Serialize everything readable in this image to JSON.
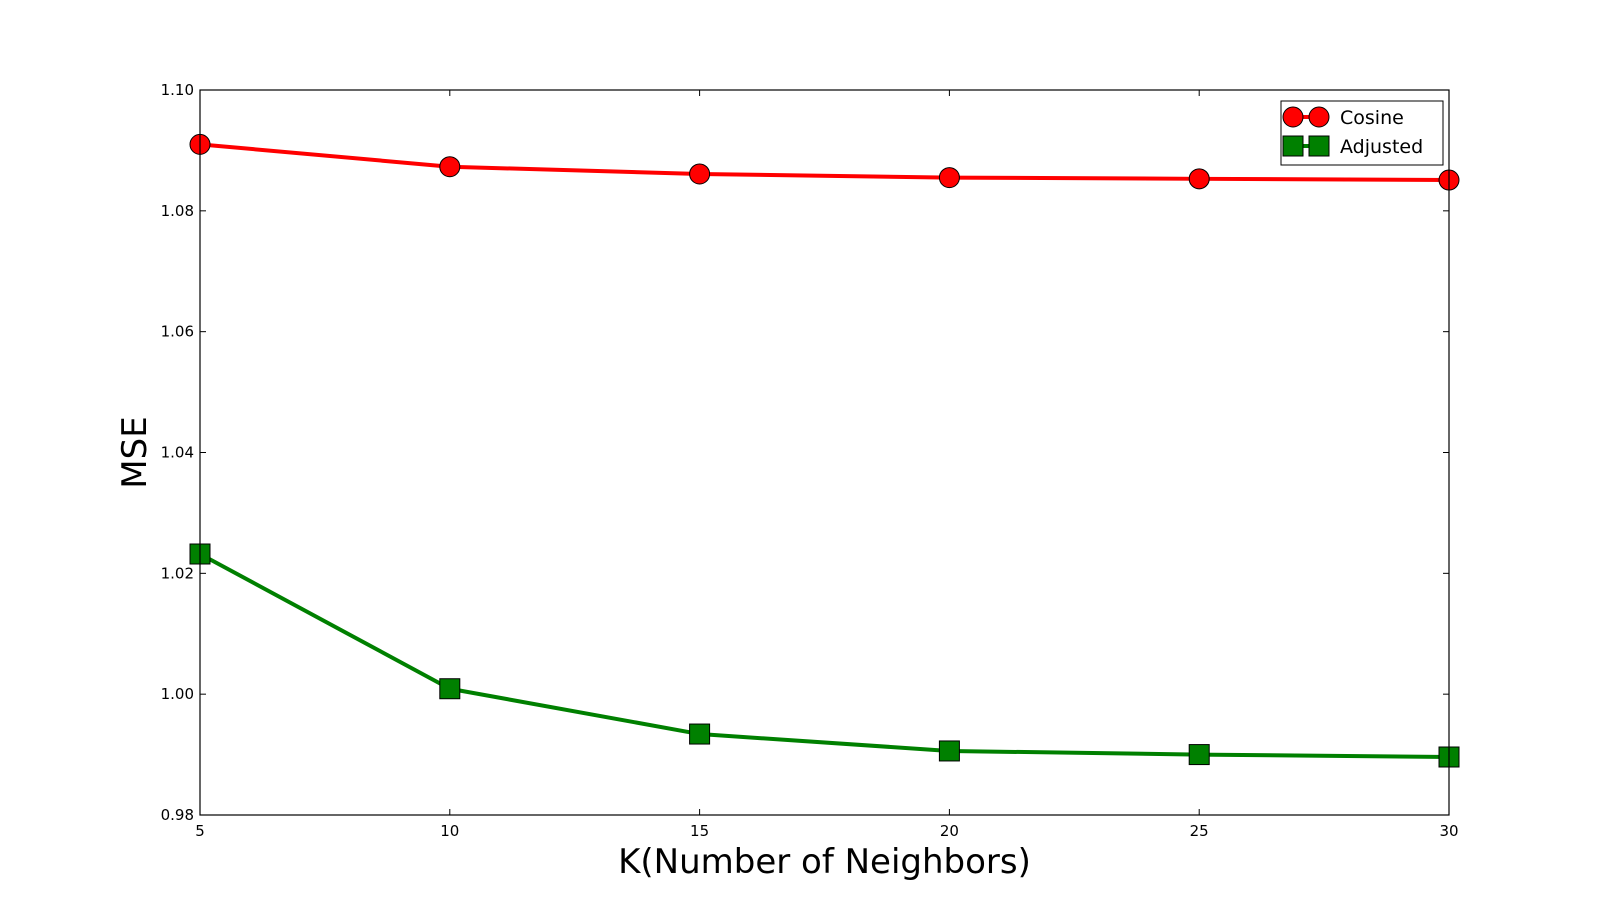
{
  "chart_data": {
    "type": "line",
    "title": "",
    "xlabel": "K(Number of Neighbors)",
    "ylabel": "MSE",
    "x": [
      5,
      10,
      15,
      20,
      25,
      30
    ],
    "xlim": [
      5,
      30
    ],
    "ylim": [
      0.98,
      1.1
    ],
    "xticks": [
      5,
      10,
      15,
      20,
      25,
      30
    ],
    "xtick_labels": [
      "5",
      "10",
      "15",
      "20",
      "25",
      "30"
    ],
    "yticks": [
      0.98,
      1.0,
      1.02,
      1.04,
      1.06,
      1.08,
      1.1
    ],
    "ytick_labels": [
      "0.98",
      "1.00",
      "1.02",
      "1.04",
      "1.06",
      "1.08",
      "1.10"
    ],
    "grid": false,
    "legend_position": "top-right",
    "series": [
      {
        "name": "Cosine",
        "marker": "circle",
        "color": "#ff0000",
        "values": [
          1.091,
          1.0873,
          1.0861,
          1.0855,
          1.0853,
          1.0851
        ]
      },
      {
        "name": "Adjusted",
        "marker": "square",
        "color": "#008000",
        "values": [
          1.0232,
          1.0009,
          0.9934,
          0.9906,
          0.99,
          0.9896
        ]
      }
    ]
  }
}
